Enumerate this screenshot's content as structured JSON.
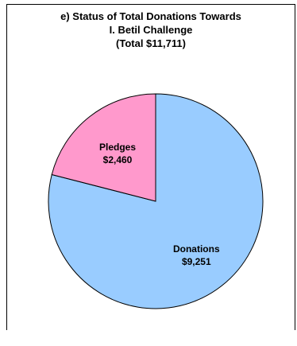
{
  "chart_data": {
    "type": "pie",
    "title_lines": [
      "e) Status of Total Donations Towards",
      "I. Betil Challenge",
      "(Total $11,711)"
    ],
    "slices": [
      {
        "name": "Donations",
        "value": 9251,
        "label": "$9,251",
        "color": "#99CCFF"
      },
      {
        "name": "Pledges",
        "value": 2460,
        "label": "$2,460",
        "color": "#FF99CC"
      }
    ],
    "total": 11711,
    "legend": "none"
  }
}
